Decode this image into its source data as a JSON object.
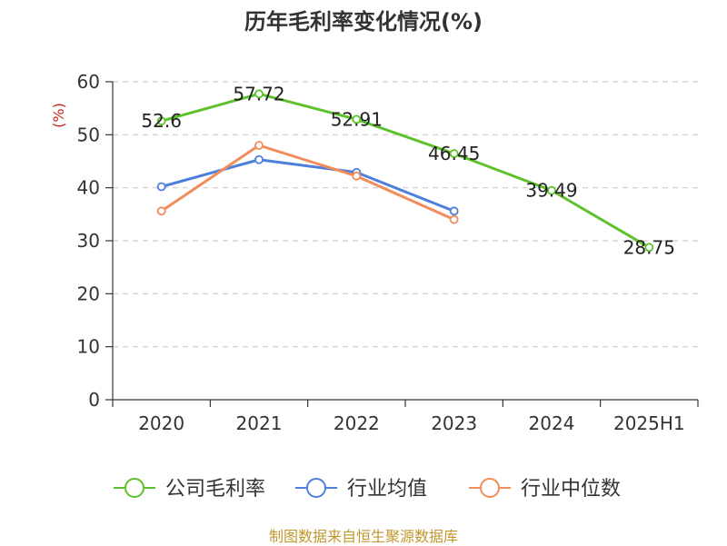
{
  "chart_data": {
    "type": "line",
    "title": "历年毛利率变化情况(%)",
    "ylabel": "(%)",
    "xlabel": "",
    "categories": [
      "2020",
      "2021",
      "2022",
      "2023",
      "2024",
      "2025H1"
    ],
    "ylim": [
      0,
      60
    ],
    "yticks": [
      0,
      10,
      20,
      30,
      40,
      50,
      60
    ],
    "grid": true,
    "legend_position": "bottom",
    "series": [
      {
        "name": "公司毛利率",
        "color": "#5cc12a",
        "values": [
          52.6,
          57.72,
          52.91,
          46.45,
          39.49,
          28.75
        ],
        "labels": [
          "52.6",
          "57.72",
          "52.91",
          "46.45",
          "39.49",
          "28.75"
        ]
      },
      {
        "name": "行业均值",
        "color": "#4d7fdc",
        "values": [
          40.2,
          45.3,
          42.9,
          35.6,
          null,
          null
        ]
      },
      {
        "name": "行业中位数",
        "color": "#f28c5a",
        "values": [
          35.6,
          48.0,
          42.2,
          34.0,
          null,
          null
        ]
      }
    ]
  },
  "source_text": "制图数据来自恒生聚源数据库"
}
